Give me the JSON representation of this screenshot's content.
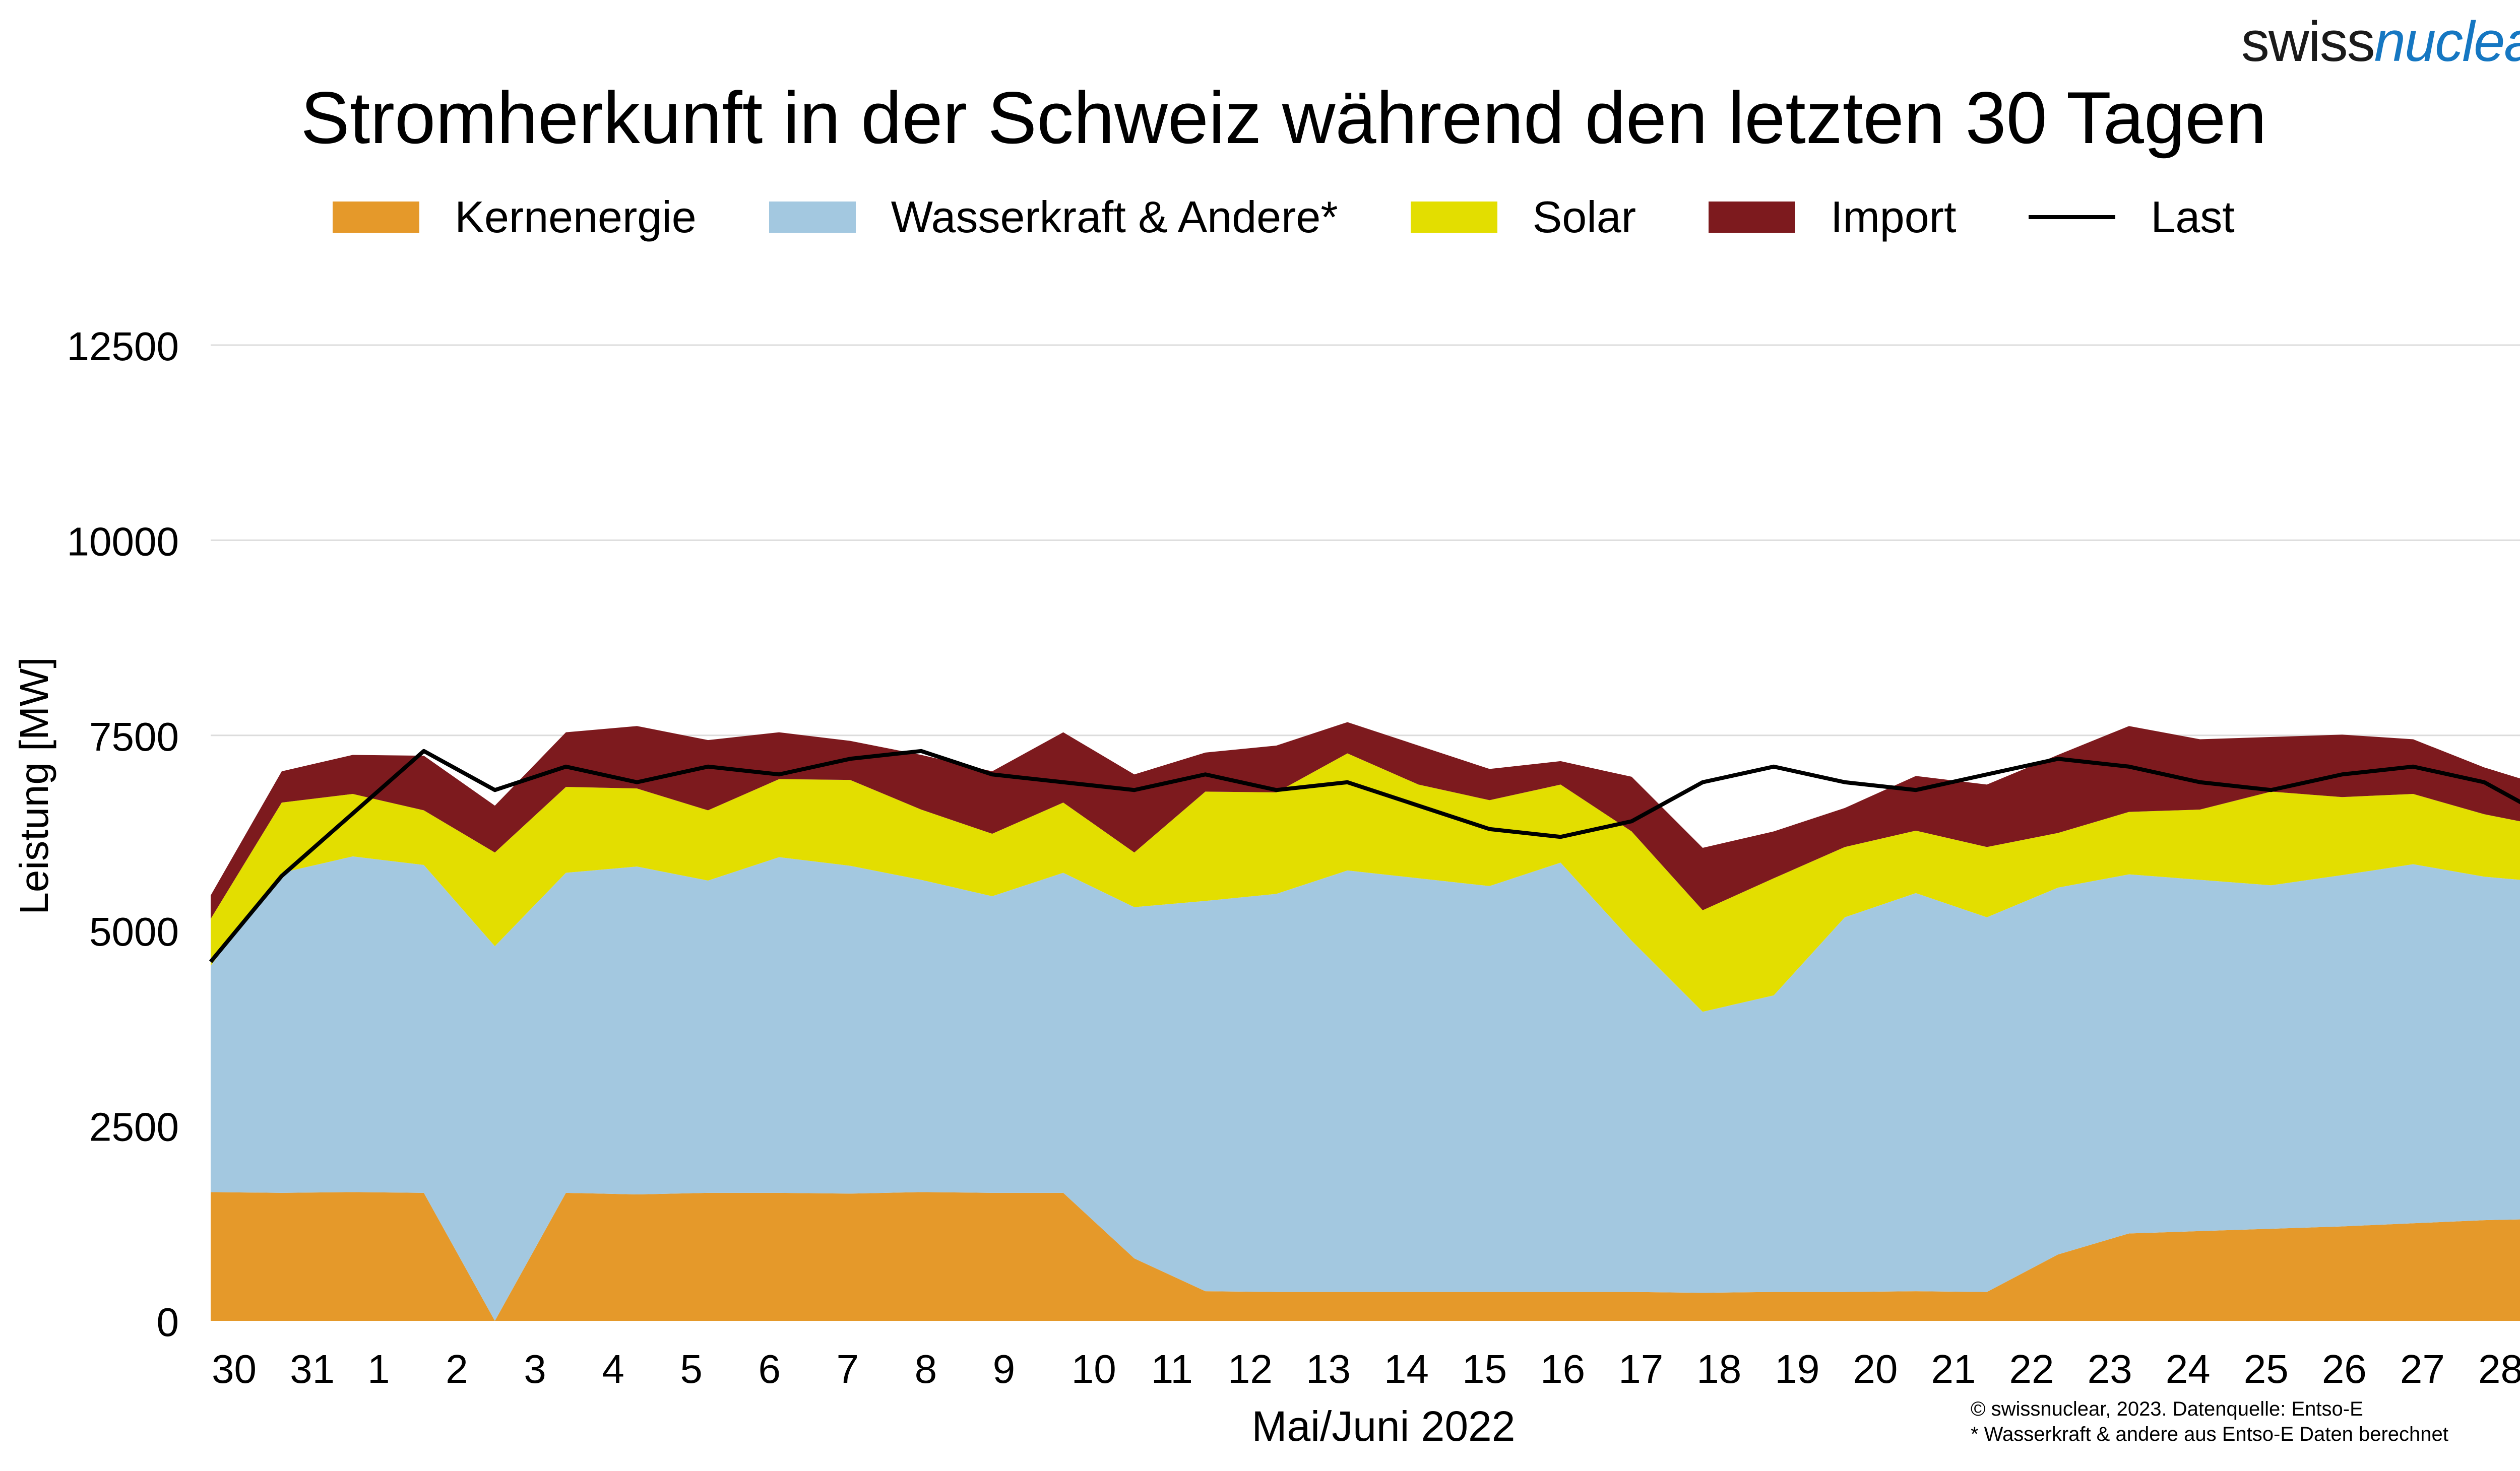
{
  "brand": {
    "part1": "swiss",
    "part2": "nuclear"
  },
  "chart_data": {
    "type": "area",
    "title": "Stromherkunft in der Schweiz während den letzten 30 Tagen",
    "xlabel": "Mai/Juni 2022",
    "ylabel": "Leistung [MW]",
    "ylim": [
      0,
      12500
    ],
    "yticks": [
      0,
      2500,
      5000,
      7500,
      10000,
      12500
    ],
    "xlim": [
      0,
      30
    ],
    "xtick_labels": [
      "30",
      "31",
      "1",
      "2",
      "3",
      "4",
      "5",
      "6",
      "7",
      "8",
      "9",
      "10",
      "11",
      "12",
      "13",
      "14",
      "15",
      "16",
      "17",
      "18",
      "19",
      "20",
      "21",
      "22",
      "23",
      "24",
      "25",
      "26",
      "27",
      "28"
    ],
    "xtick_positions": [
      0.3,
      1.3,
      2.15,
      3.15,
      4.15,
      5.15,
      6.15,
      7.15,
      8.15,
      9.15,
      10.15,
      11.3,
      12.3,
      13.3,
      14.3,
      15.3,
      16.3,
      17.3,
      18.3,
      19.3,
      20.3,
      21.3,
      22.3,
      23.3,
      24.3,
      25.3,
      26.3,
      27.3,
      28.3,
      29.3
    ],
    "grid": true,
    "legend_placement": "top",
    "stacking": "stacked",
    "series": [
      {
        "name": "Kernenergie",
        "color": "#e5992a",
        "values": [
          1650,
          1640,
          1650,
          1640,
          0,
          1640,
          1620,
          1640,
          1640,
          1630,
          1650,
          1640,
          1640,
          800,
          380,
          370,
          370,
          370,
          370,
          370,
          370,
          360,
          370,
          370,
          380,
          370,
          850,
          1120,
          1150,
          1180,
          1210,
          1250,
          1290,
          1310
        ]
      },
      {
        "name": "Wasserkraft & Andere*",
        "color": "#a3c8e0",
        "values": [
          2900,
          4100,
          4300,
          4200,
          4800,
          4100,
          4200,
          4000,
          4300,
          4200,
          4000,
          3800,
          4100,
          4500,
          5000,
          5100,
          5400,
          5300,
          5200,
          5500,
          4500,
          3600,
          3800,
          4800,
          5100,
          4800,
          4700,
          4600,
          4500,
          4400,
          4500,
          4600,
          4400,
          4300
        ]
      },
      {
        "name": "Solar",
        "color": "#e3de00",
        "values": [
          600,
          900,
          800,
          700,
          1200,
          1100,
          1000,
          900,
          1000,
          1100,
          900,
          800,
          900,
          700,
          1400,
          1300,
          1500,
          1200,
          1100,
          1000,
          1400,
          1300,
          1500,
          900,
          800,
          900,
          700,
          800,
          900,
          1200,
          1000,
          900,
          800,
          700
        ]
      },
      {
        "name": "Import",
        "color": "#7d1a1e",
        "values": [
          300,
          400,
          500,
          700,
          600,
          700,
          800,
          900,
          600,
          500,
          700,
          800,
          900,
          1000,
          500,
          600,
          400,
          500,
          400,
          300,
          700,
          800,
          600,
          500,
          700,
          800,
          1000,
          1100,
          900,
          700,
          800,
          700,
          600,
          500
        ]
      }
    ],
    "line": {
      "name": "Last",
      "color": "#000000",
      "values": [
        4600,
        5700,
        6500,
        7300,
        6800,
        7100,
        6900,
        7100,
        7000,
        7200,
        7300,
        7000,
        6900,
        6800,
        7000,
        6800,
        6900,
        6600,
        6300,
        6200,
        6400,
        6900,
        7100,
        6900,
        6800,
        7000,
        7200,
        7100,
        6900,
        6800,
        7000,
        7100,
        6900,
        6400
      ]
    }
  },
  "footnotes": [
    "© swissnuclear, 2023. Datenquelle: Entso-E",
    "* Wasserkraft & andere aus Entso-E Daten berechnet"
  ]
}
